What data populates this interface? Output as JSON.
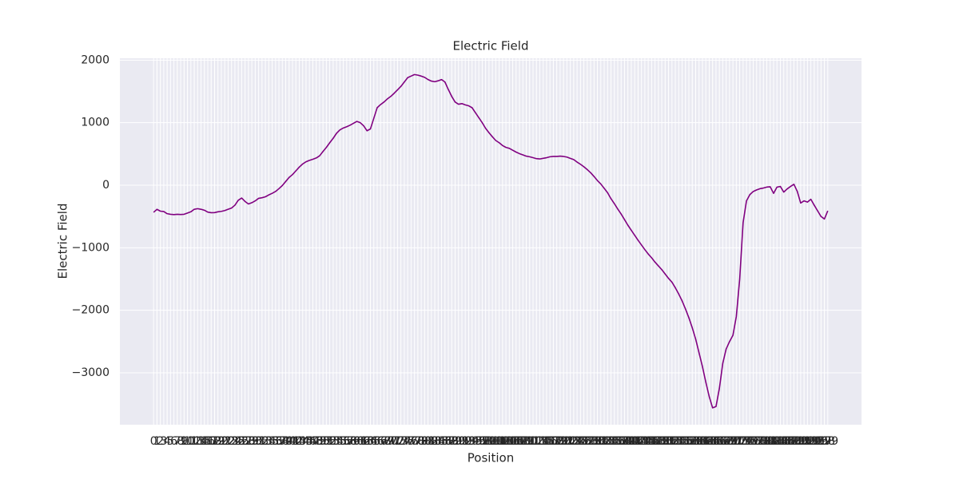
{
  "chart_data": {
    "type": "line",
    "title": "Electric Field",
    "xlabel": "Position",
    "ylabel": "Electric Field",
    "x": [
      0,
      1,
      2,
      3,
      4,
      5,
      6,
      7,
      8,
      9,
      10,
      11,
      12,
      13,
      14,
      15,
      16,
      17,
      18,
      19,
      20,
      21,
      22,
      23,
      24,
      25,
      26,
      27,
      28,
      29,
      30,
      31,
      32,
      33,
      34,
      35,
      36,
      37,
      38,
      39,
      40,
      41,
      42,
      43,
      44,
      45,
      46,
      47,
      48,
      49,
      50,
      51,
      52,
      53,
      54,
      55,
      56,
      57,
      58,
      59,
      60,
      61,
      62,
      63,
      64,
      65,
      66,
      67,
      68,
      69,
      70,
      71,
      72,
      73,
      74,
      75,
      76,
      77,
      78,
      79,
      80,
      81,
      82,
      83,
      84,
      85,
      86,
      87,
      88,
      89,
      90,
      91,
      92,
      93,
      94,
      95,
      96,
      97,
      98,
      99,
      100,
      101,
      102,
      103,
      104,
      105,
      106,
      107,
      108,
      109,
      110,
      111,
      112,
      113,
      114,
      115,
      116,
      117,
      118,
      119,
      120,
      121,
      122,
      123,
      124,
      125,
      126,
      127,
      128,
      129,
      130,
      131,
      132,
      133,
      134,
      135,
      136,
      137,
      138,
      139,
      140,
      141,
      142,
      143,
      144,
      145,
      146,
      147,
      148,
      149,
      150,
      151,
      152,
      153,
      154,
      155,
      156,
      157,
      158,
      159,
      160,
      161,
      162,
      163,
      164,
      165,
      166,
      167,
      168,
      169,
      170,
      171,
      172,
      173,
      174,
      175,
      176,
      177,
      178,
      179,
      180,
      181,
      182,
      183,
      184,
      185,
      186,
      187,
      188,
      189,
      190,
      191,
      192,
      193,
      194,
      195,
      196,
      197,
      198,
      199
    ],
    "series": [
      {
        "name": "Electric Field",
        "color": "#800080",
        "values": [
          -433,
          -385,
          -415,
          -420,
          -455,
          -465,
          -470,
          -465,
          -468,
          -465,
          -445,
          -425,
          -385,
          -375,
          -385,
          -400,
          -430,
          -440,
          -438,
          -425,
          -418,
          -405,
          -385,
          -365,
          -320,
          -240,
          -205,
          -260,
          -300,
          -280,
          -250,
          -210,
          -200,
          -185,
          -155,
          -130,
          -100,
          -55,
          -5,
          60,
          125,
          170,
          230,
          290,
          340,
          375,
          398,
          415,
          435,
          470,
          540,
          605,
          680,
          750,
          830,
          885,
          915,
          935,
          960,
          990,
          1020,
          1000,
          950,
          870,
          900,
          1070,
          1240,
          1290,
          1330,
          1380,
          1420,
          1470,
          1525,
          1580,
          1650,
          1720,
          1745,
          1770,
          1760,
          1745,
          1725,
          1690,
          1665,
          1655,
          1670,
          1690,
          1650,
          1530,
          1420,
          1330,
          1295,
          1305,
          1285,
          1270,
          1240,
          1160,
          1080,
          1000,
          910,
          840,
          775,
          715,
          680,
          635,
          605,
          590,
          560,
          530,
          505,
          485,
          465,
          455,
          440,
          425,
          420,
          430,
          440,
          455,
          460,
          460,
          465,
          460,
          450,
          430,
          410,
          370,
          335,
          295,
          250,
          200,
          140,
          75,
          20,
          -50,
          -120,
          -215,
          -295,
          -380,
          -460,
          -550,
          -640,
          -720,
          -800,
          -880,
          -955,
          -1030,
          -1100,
          -1160,
          -1230,
          -1290,
          -1350,
          -1420,
          -1490,
          -1550,
          -1640,
          -1740,
          -1850,
          -1980,
          -2120,
          -2280,
          -2460,
          -2680,
          -2900,
          -3150,
          -3380,
          -3560,
          -3540,
          -3250,
          -2850,
          -2620,
          -2500,
          -2400,
          -2100,
          -1500,
          -600,
          -250,
          -150,
          -100,
          -75,
          -55,
          -45,
          -30,
          -25,
          -130,
          -30,
          -20,
          -110,
          -60,
          -20,
          15,
          -100,
          -285,
          -250,
          -270,
          -225,
          -320,
          -410,
          -500,
          -540,
          -410
        ]
      }
    ],
    "xlim": [
      -9.95,
      208.95
    ],
    "ylim": [
      -3830,
      2030
    ],
    "xticks": [
      0,
      1,
      2,
      3,
      4,
      5,
      6,
      7,
      8,
      9,
      10,
      11,
      12,
      13,
      14,
      15,
      16,
      17,
      18,
      19,
      20,
      21,
      22,
      23,
      24,
      25,
      26,
      27,
      28,
      29,
      30,
      31,
      32,
      33,
      34,
      35,
      36,
      37,
      38,
      39,
      40,
      41,
      42,
      43,
      44,
      45,
      46,
      47,
      48,
      49,
      50,
      51,
      52,
      53,
      54,
      55,
      56,
      57,
      58,
      59,
      60,
      61,
      62,
      63,
      64,
      65,
      66,
      67,
      68,
      69,
      70,
      71,
      72,
      73,
      74,
      75,
      76,
      77,
      78,
      79,
      80,
      81,
      82,
      83,
      84,
      85,
      86,
      87,
      88,
      89,
      90,
      91,
      92,
      93,
      94,
      95,
      96,
      97,
      98,
      99,
      100,
      101,
      102,
      103,
      104,
      105,
      106,
      107,
      108,
      109,
      110,
      111,
      112,
      113,
      114,
      115,
      116,
      117,
      118,
      119,
      120,
      121,
      122,
      123,
      124,
      125,
      126,
      127,
      128,
      129,
      130,
      131,
      132,
      133,
      134,
      135,
      136,
      137,
      138,
      139,
      140,
      141,
      142,
      143,
      144,
      145,
      146,
      147,
      148,
      149,
      150,
      151,
      152,
      153,
      154,
      155,
      156,
      157,
      158,
      159,
      160,
      161,
      162,
      163,
      164,
      165,
      166,
      167,
      168,
      169,
      170,
      171,
      172,
      173,
      174,
      175,
      176,
      177,
      178,
      179,
      180,
      181,
      182,
      183,
      184,
      185,
      186,
      187,
      188,
      189,
      190,
      191,
      192,
      193,
      194,
      195,
      196,
      197,
      198,
      199
    ],
    "yticks": [
      -3000,
      -2000,
      -1000,
      0,
      1000,
      2000
    ],
    "grid": true
  }
}
